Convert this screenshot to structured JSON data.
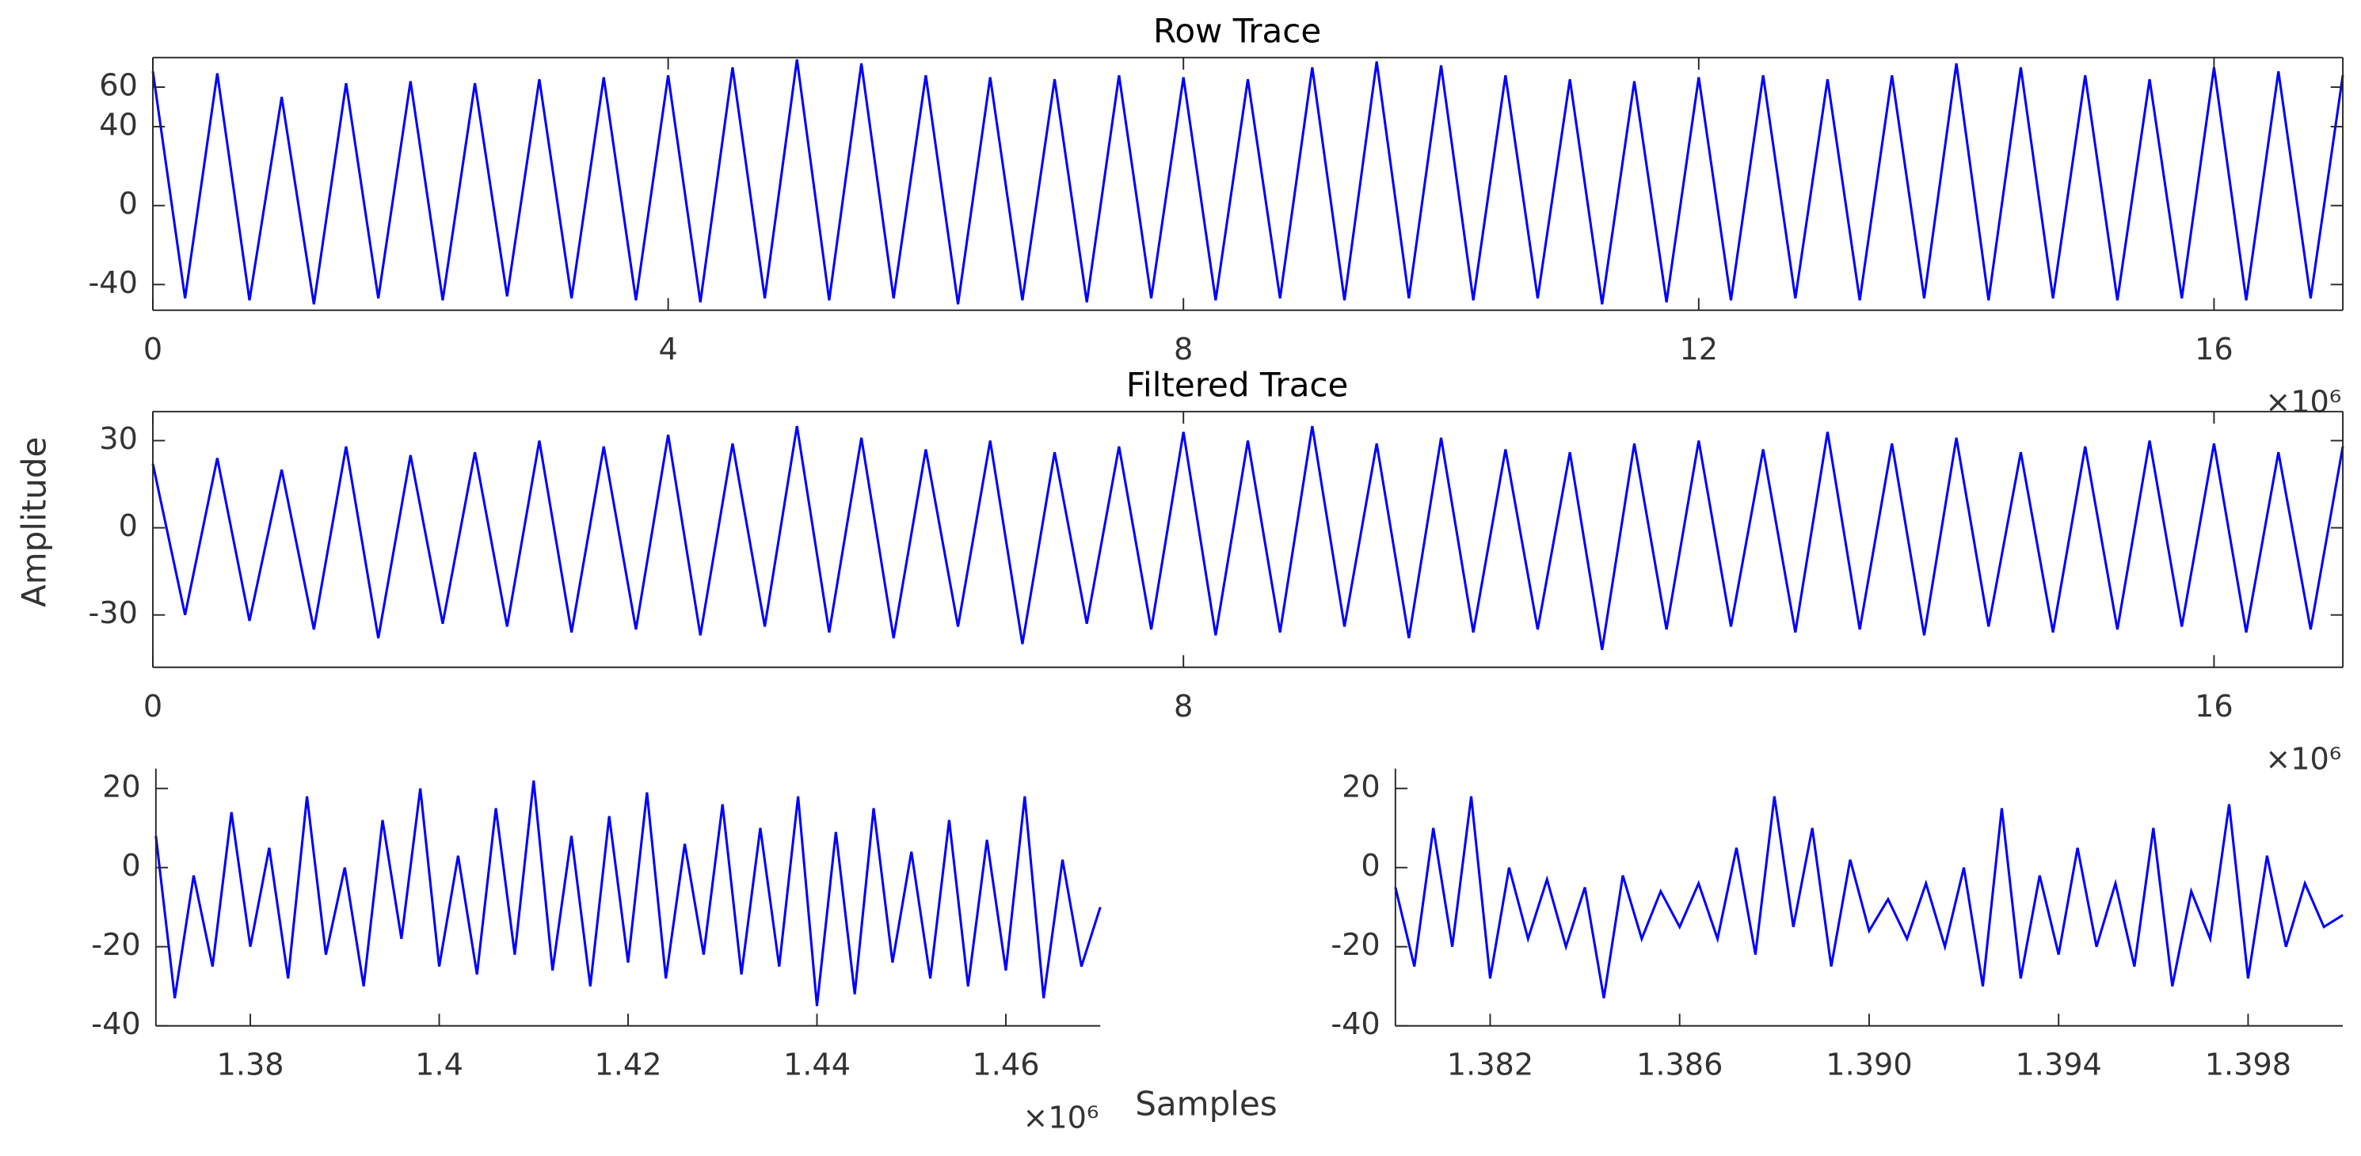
{
  "chart_data": [
    {
      "type": "line",
      "title": "Row Trace",
      "color": "#0000ff",
      "box": true,
      "x_scale_label": "×10⁶",
      "xlim": [
        0,
        17000000
      ],
      "ylim": [
        -53,
        75
      ],
      "xticks": [
        {
          "value": 0,
          "label": "0"
        },
        {
          "value": 4000000,
          "label": "4"
        },
        {
          "value": 8000000,
          "label": "8"
        },
        {
          "value": 12000000,
          "label": "12"
        },
        {
          "value": 16000000,
          "label": "16"
        }
      ],
      "yticks": [
        -40,
        0,
        40,
        60
      ],
      "x": [
        0,
        250000,
        500000,
        750000,
        1000000,
        1250000,
        1500000,
        1750000,
        2000000,
        2250000,
        2500000,
        2750000,
        3000000,
        3250000,
        3500000,
        3750000,
        4000000,
        4250000,
        4500000,
        4750000,
        5000000,
        5250000,
        5500000,
        5750000,
        6000000,
        6250000,
        6500000,
        6750000,
        7000000,
        7250000,
        7500000,
        7750000,
        8000000,
        8250000,
        8500000,
        8750000,
        9000000,
        9250000,
        9500000,
        9750000,
        10000000,
        10250000,
        10500000,
        10750000,
        11000000,
        11250000,
        11500000,
        11750000,
        12000000,
        12250000,
        12500000,
        12750000,
        13000000,
        13250000,
        13500000,
        13750000,
        14000000,
        14250000,
        14500000,
        14750000,
        15000000,
        15250000,
        15500000,
        15750000,
        16000000,
        16250000,
        16500000,
        16750000,
        17000000
      ],
      "values": [
        68,
        -47,
        67,
        -48,
        55,
        -50,
        62,
        -47,
        63,
        -48,
        62,
        -46,
        64,
        -47,
        65,
        -48,
        66,
        -49,
        70,
        -47,
        74,
        -48,
        72,
        -47,
        66,
        -50,
        65,
        -48,
        64,
        -49,
        66,
        -47,
        65,
        -48,
        64,
        -47,
        70,
        -48,
        73,
        -47,
        71,
        -48,
        66,
        -47,
        64,
        -50,
        63,
        -49,
        65,
        -48,
        66,
        -47,
        64,
        -48,
        66,
        -47,
        72,
        -48,
        70,
        -47,
        66,
        -48,
        64,
        -47,
        70,
        -48,
        68,
        -47,
        66
      ]
    },
    {
      "type": "line",
      "title": "Filtered Trace",
      "ylabel": "Amplitude",
      "color": "#0000ff",
      "box": true,
      "x_scale_label": "×10⁶",
      "xlim": [
        0,
        17000000
      ],
      "ylim": [
        -48,
        40
      ],
      "xticks": [
        {
          "value": 0,
          "label": "0"
        },
        {
          "value": 8000000,
          "label": "8"
        },
        {
          "value": 16000000,
          "label": "16"
        }
      ],
      "yticks": [
        -30,
        0,
        30
      ],
      "x": [
        0,
        250000,
        500000,
        750000,
        1000000,
        1250000,
        1500000,
        1750000,
        2000000,
        2250000,
        2500000,
        2750000,
        3000000,
        3250000,
        3500000,
        3750000,
        4000000,
        4250000,
        4500000,
        4750000,
        5000000,
        5250000,
        5500000,
        5750000,
        6000000,
        6250000,
        6500000,
        6750000,
        7000000,
        7250000,
        7500000,
        7750000,
        8000000,
        8250000,
        8500000,
        8750000,
        9000000,
        9250000,
        9500000,
        9750000,
        10000000,
        10250000,
        10500000,
        10750000,
        11000000,
        11250000,
        11500000,
        11750000,
        12000000,
        12250000,
        12500000,
        12750000,
        13000000,
        13250000,
        13500000,
        13750000,
        14000000,
        14250000,
        14500000,
        14750000,
        15000000,
        15250000,
        15500000,
        15750000,
        16000000,
        16250000,
        16500000,
        16750000,
        17000000
      ],
      "values": [
        22,
        -30,
        24,
        -32,
        20,
        -35,
        28,
        -38,
        25,
        -33,
        26,
        -34,
        30,
        -36,
        28,
        -35,
        32,
        -37,
        29,
        -34,
        35,
        -36,
        31,
        -38,
        27,
        -34,
        30,
        -40,
        26,
        -33,
        28,
        -35,
        33,
        -37,
        30,
        -36,
        35,
        -34,
        29,
        -38,
        31,
        -36,
        27,
        -35,
        26,
        -42,
        29,
        -35,
        30,
        -34,
        27,
        -36,
        33,
        -35,
        29,
        -37,
        31,
        -34,
        26,
        -36,
        28,
        -35,
        30,
        -34,
        29,
        -36,
        26,
        -35,
        28
      ]
    },
    {
      "type": "line",
      "xlabel": "Samples",
      "color": "#0000ff",
      "box": false,
      "x_scale_label": "×10⁶",
      "xlim": [
        1370000,
        1470000
      ],
      "ylim": [
        -40,
        25
      ],
      "xticks": [
        {
          "value": 1380000,
          "label": "1.38"
        },
        {
          "value": 1400000,
          "label": "1.4"
        },
        {
          "value": 1420000,
          "label": "1.42"
        },
        {
          "value": 1440000,
          "label": "1.44"
        },
        {
          "value": 1460000,
          "label": "1.46"
        }
      ],
      "yticks": [
        -40,
        -20,
        0,
        20
      ],
      "x": [
        1370000,
        1372000,
        1374000,
        1376000,
        1378000,
        1380000,
        1382000,
        1384000,
        1386000,
        1388000,
        1390000,
        1392000,
        1394000,
        1396000,
        1398000,
        1400000,
        1402000,
        1404000,
        1406000,
        1408000,
        1410000,
        1412000,
        1414000,
        1416000,
        1418000,
        1420000,
        1422000,
        1424000,
        1426000,
        1428000,
        1430000,
        1432000,
        1434000,
        1436000,
        1438000,
        1440000,
        1442000,
        1444000,
        1446000,
        1448000,
        1450000,
        1452000,
        1454000,
        1456000,
        1458000,
        1460000,
        1462000,
        1464000,
        1466000,
        1468000,
        1470000
      ],
      "values": [
        8,
        -33,
        -2,
        -25,
        14,
        -20,
        5,
        -28,
        18,
        -22,
        0,
        -30,
        12,
        -18,
        20,
        -25,
        3,
        -27,
        15,
        -22,
        22,
        -26,
        8,
        -30,
        13,
        -24,
        19,
        -28,
        6,
        -22,
        16,
        -27,
        10,
        -25,
        18,
        -35,
        9,
        -32,
        15,
        -24,
        4,
        -28,
        12,
        -30,
        7,
        -26,
        18,
        -33,
        2,
        -25,
        -10
      ]
    },
    {
      "type": "line",
      "color": "#0000ff",
      "box": false,
      "xlim": [
        1380000,
        1400000
      ],
      "ylim": [
        -40,
        25
      ],
      "xticks": [
        {
          "value": 1382000,
          "label": "1.382"
        },
        {
          "value": 1386000,
          "label": "1.386"
        },
        {
          "value": 1390000,
          "label": "1.390"
        },
        {
          "value": 1394000,
          "label": "1.394"
        },
        {
          "value": 1398000,
          "label": "1.398"
        }
      ],
      "yticks": [
        -40,
        -20,
        0,
        20
      ],
      "x": [
        1380000,
        1380400,
        1380800,
        1381200,
        1381600,
        1382000,
        1382400,
        1382800,
        1383200,
        1383600,
        1384000,
        1384400,
        1384800,
        1385200,
        1385600,
        1386000,
        1386400,
        1386800,
        1387200,
        1387600,
        1388000,
        1388400,
        1388800,
        1389200,
        1389600,
        1390000,
        1390400,
        1390800,
        1391200,
        1391600,
        1392000,
        1392400,
        1392800,
        1393200,
        1393600,
        1394000,
        1394400,
        1394800,
        1395200,
        1395600,
        1396000,
        1396400,
        1396800,
        1397200,
        1397600,
        1398000,
        1398400,
        1398800,
        1399200,
        1399600,
        1400000
      ],
      "values": [
        -5,
        -25,
        10,
        -20,
        18,
        -28,
        0,
        -18,
        -3,
        -20,
        -5,
        -33,
        -2,
        -18,
        -6,
        -15,
        -4,
        -18,
        5,
        -22,
        18,
        -15,
        10,
        -25,
        2,
        -16,
        -8,
        -18,
        -4,
        -20,
        0,
        -30,
        15,
        -28,
        -2,
        -22,
        5,
        -20,
        -4,
        -25,
        10,
        -30,
        -6,
        -18,
        16,
        -28,
        3,
        -20,
        -4,
        -15,
        -12
      ]
    }
  ]
}
